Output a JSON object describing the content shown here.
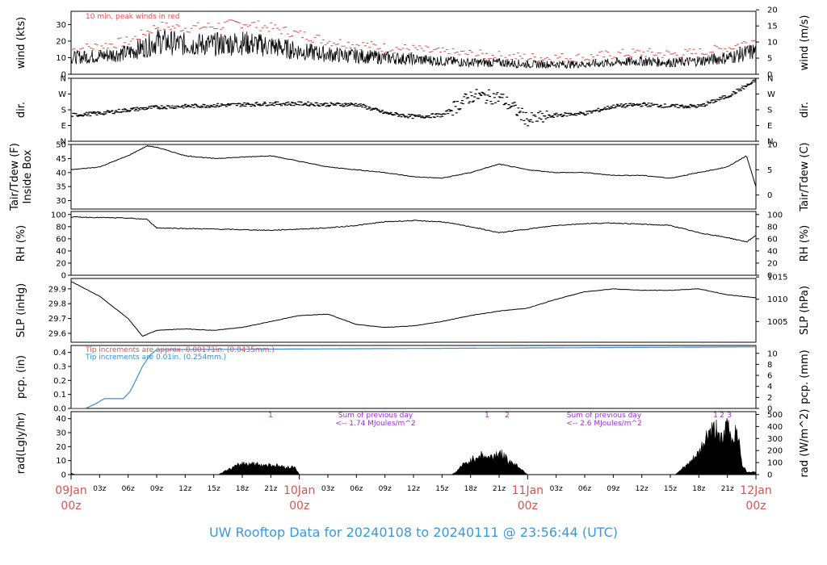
{
  "chart_data": [
    {
      "type": "line",
      "ylabel_left": "wind (kts)",
      "ylabel_right": "wind (m/s)",
      "ylim": [
        0,
        38
      ],
      "yticks_left": [
        "0",
        "10",
        "20",
        "30"
      ],
      "yticks_right": [
        "0",
        "5",
        "10",
        "15",
        "20"
      ],
      "annotation": "10 min. peak winds in red",
      "series": [
        {
          "x": [
            0,
            3,
            6,
            8,
            9,
            12,
            15,
            18,
            21,
            24,
            27,
            30,
            33,
            36,
            39,
            42,
            45,
            48,
            51,
            54,
            57,
            60,
            63,
            66,
            69,
            72
          ],
          "values": [
            10,
            11,
            13,
            17,
            20,
            18,
            18,
            19,
            17,
            14,
            12,
            11,
            10,
            9,
            8,
            7,
            7,
            6,
            6,
            6,
            7,
            8,
            7,
            8,
            10,
            14
          ]
        },
        {
          "x": [
            0,
            3,
            6,
            8,
            9,
            12,
            15,
            18,
            21,
            24,
            27,
            30,
            33,
            36,
            39,
            42,
            45,
            48,
            51,
            54,
            57,
            60,
            63,
            66,
            69,
            72
          ],
          "values": [
            15,
            17,
            20,
            26,
            29,
            28,
            29,
            31,
            28,
            24,
            20,
            18,
            16,
            15,
            13,
            12,
            11,
            10,
            10,
            10,
            12,
            13,
            12,
            13,
            16,
            21
          ]
        }
      ]
    },
    {
      "type": "scatter",
      "ylabel_left": "dir.",
      "ylabel_right": "dir.",
      "ylim": [
        0,
        360
      ],
      "yticks_left": [
        "N",
        "E",
        "S",
        "W",
        "N"
      ],
      "yticks_right": [
        "N",
        "E",
        "S",
        "W",
        "N"
      ],
      "series": [
        {
          "x": [
            0,
            3,
            6,
            9,
            12,
            15,
            18,
            21,
            24,
            27,
            30,
            33,
            36,
            39,
            42,
            45,
            48,
            51,
            54,
            57,
            60,
            63,
            66,
            69,
            72
          ],
          "values": [
            150,
            160,
            180,
            195,
            200,
            205,
            210,
            215,
            215,
            210,
            210,
            160,
            140,
            150,
            260,
            250,
            120,
            150,
            160,
            200,
            210,
            200,
            200,
            260,
            350
          ]
        }
      ]
    },
    {
      "type": "line",
      "ylabel_left": "Tair/Tdew (F)\nInside Box",
      "ylabel_right": "Tair/Tdew (C)",
      "ylim": [
        27,
        50
      ],
      "yticks_left": [
        "30",
        "35",
        "40",
        "45",
        "50"
      ],
      "yticks_right": [
        "0",
        "5",
        "10"
      ],
      "series": [
        {
          "x": [
            0,
            3,
            6,
            8,
            9,
            12,
            15,
            18,
            21,
            24,
            27,
            30,
            33,
            36,
            39,
            42,
            45,
            48,
            51,
            54,
            57,
            60,
            63,
            66,
            69,
            71,
            72
          ],
          "values": [
            41,
            42,
            46,
            49.5,
            49,
            46,
            45,
            45.5,
            46,
            44,
            42,
            41,
            40,
            38.5,
            38,
            40,
            43,
            41,
            40,
            40,
            39,
            39,
            38,
            40,
            42,
            46,
            35
          ]
        }
      ]
    },
    {
      "type": "line",
      "ylabel_left": "RH (%)",
      "ylabel_right": "RH (%)",
      "ylim": [
        0,
        105
      ],
      "yticks_left": [
        "0",
        "20",
        "40",
        "60",
        "80",
        "100"
      ],
      "yticks_right": [
        "0",
        "20",
        "40",
        "60",
        "80",
        "100"
      ],
      "series": [
        {
          "x": [
            0,
            3,
            6,
            8,
            9,
            12,
            15,
            18,
            21,
            24,
            27,
            30,
            33,
            36,
            39,
            42,
            45,
            48,
            51,
            54,
            57,
            60,
            63,
            66,
            69,
            71,
            72
          ],
          "values": [
            96,
            95,
            94,
            92,
            78,
            77,
            76,
            75,
            74,
            76,
            78,
            82,
            88,
            90,
            88,
            80,
            70,
            76,
            82,
            85,
            86,
            84,
            82,
            70,
            62,
            55,
            65
          ]
        }
      ]
    },
    {
      "type": "line",
      "ylabel_left": "SLP (inHg)",
      "ylabel_right": "SLP (hPa)",
      "ylim": [
        29.54,
        29.97
      ],
      "yticks_left": [
        "29.6",
        "29.7",
        "29.8",
        "29.9"
      ],
      "yticks_right": [
        "1005",
        "1010",
        "1015"
      ],
      "series": [
        {
          "x": [
            0,
            3,
            6,
            7.5,
            9,
            12,
            15,
            18,
            21,
            24,
            27,
            30,
            33,
            36,
            39,
            42,
            45,
            48,
            51,
            54,
            57,
            60,
            63,
            66,
            69,
            72
          ],
          "values": [
            29.95,
            29.85,
            29.7,
            29.58,
            29.62,
            29.63,
            29.62,
            29.64,
            29.68,
            29.72,
            29.73,
            29.66,
            29.64,
            29.65,
            29.68,
            29.72,
            29.75,
            29.77,
            29.83,
            29.88,
            29.9,
            29.89,
            29.89,
            29.9,
            29.86,
            29.84
          ]
        }
      ]
    },
    {
      "type": "line",
      "ylabel_left": "pcp. (in)",
      "ylabel_right": "pcp. (mm)",
      "ylim": [
        0,
        0.45
      ],
      "yticks_left": [
        "0.0",
        "0.1",
        "0.2",
        "0.3",
        "0.4"
      ],
      "yticks_right": [
        "0",
        "2",
        "4",
        "6",
        "8",
        "10"
      ],
      "annotations": [
        "Tip increments are approx. 0.00171in. (0.0435mm.)",
        "Tip increments are 0.01in. (0.254mm.)"
      ],
      "series": [
        {
          "x": [
            0,
            1.5,
            2.5,
            3.5,
            4,
            5.5,
            6.2,
            6.8,
            7.5,
            8.3,
            9,
            72
          ],
          "values": [
            0,
            0,
            0.03,
            0.07,
            0.07,
            0.07,
            0.12,
            0.2,
            0.3,
            0.38,
            0.42,
            0.44
          ]
        }
      ]
    },
    {
      "type": "area",
      "ylabel_left": "rad(Lgly/hr)",
      "ylabel_right": "rad (W/m^2)",
      "ylim": [
        0,
        45
      ],
      "yticks_left": [
        "0",
        "10",
        "20",
        "30",
        "40"
      ],
      "yticks_right": [
        "0",
        "100",
        "200",
        "300",
        "400",
        "500"
      ],
      "annotations": [
        "1",
        "Sum of previous day",
        "<-- 1.74 MJoules/m^2",
        "1",
        "2",
        "Sum of previous day",
        "<-- 2.6 MJoules/m^2",
        "1",
        "2",
        "3"
      ],
      "series": [
        {
          "x": [
            0,
            0.5,
            15.5,
            16,
            17,
            18,
            19,
            20,
            21,
            22,
            23,
            23.5,
            24,
            40,
            40.5,
            41,
            42,
            43,
            44,
            45,
            46,
            47,
            47.5,
            48,
            63.5,
            64,
            65,
            66,
            67,
            68,
            68.5,
            69,
            69.5,
            70,
            70.5,
            71,
            72
          ],
          "values": [
            1,
            0,
            0,
            2,
            5,
            8,
            8,
            7,
            7,
            6,
            5,
            6,
            0,
            0,
            2,
            6,
            10,
            14,
            12,
            16,
            10,
            6,
            3,
            0,
            0,
            3,
            8,
            15,
            30,
            33,
            22,
            38,
            24,
            35,
            8,
            2,
            2
          ]
        }
      ]
    }
  ],
  "x_axis": {
    "hour_ticks": [
      "03z",
      "06z",
      "09z",
      "12z",
      "15z",
      "18z",
      "21z",
      "03z",
      "06z",
      "09z",
      "12z",
      "15z",
      "18z",
      "21z",
      "03z",
      "06z",
      "09z",
      "12z",
      "15z",
      "18z",
      "21z"
    ],
    "day_ticks": [
      {
        "date": "09Jan",
        "time": "00z"
      },
      {
        "date": "10Jan",
        "time": "00z"
      },
      {
        "date": "11Jan",
        "time": "00z"
      },
      {
        "date": "12Jan",
        "time": "00z"
      }
    ]
  },
  "title": "UW Rooftop Data for 20240108  to  20240111 @ 23:56:44  (UTC)",
  "colors": {
    "peak": "#d9534f",
    "main": "#000000",
    "pcp": "#3a8fd0",
    "note": "#9b30d9",
    "title": "#3a9ad9"
  }
}
